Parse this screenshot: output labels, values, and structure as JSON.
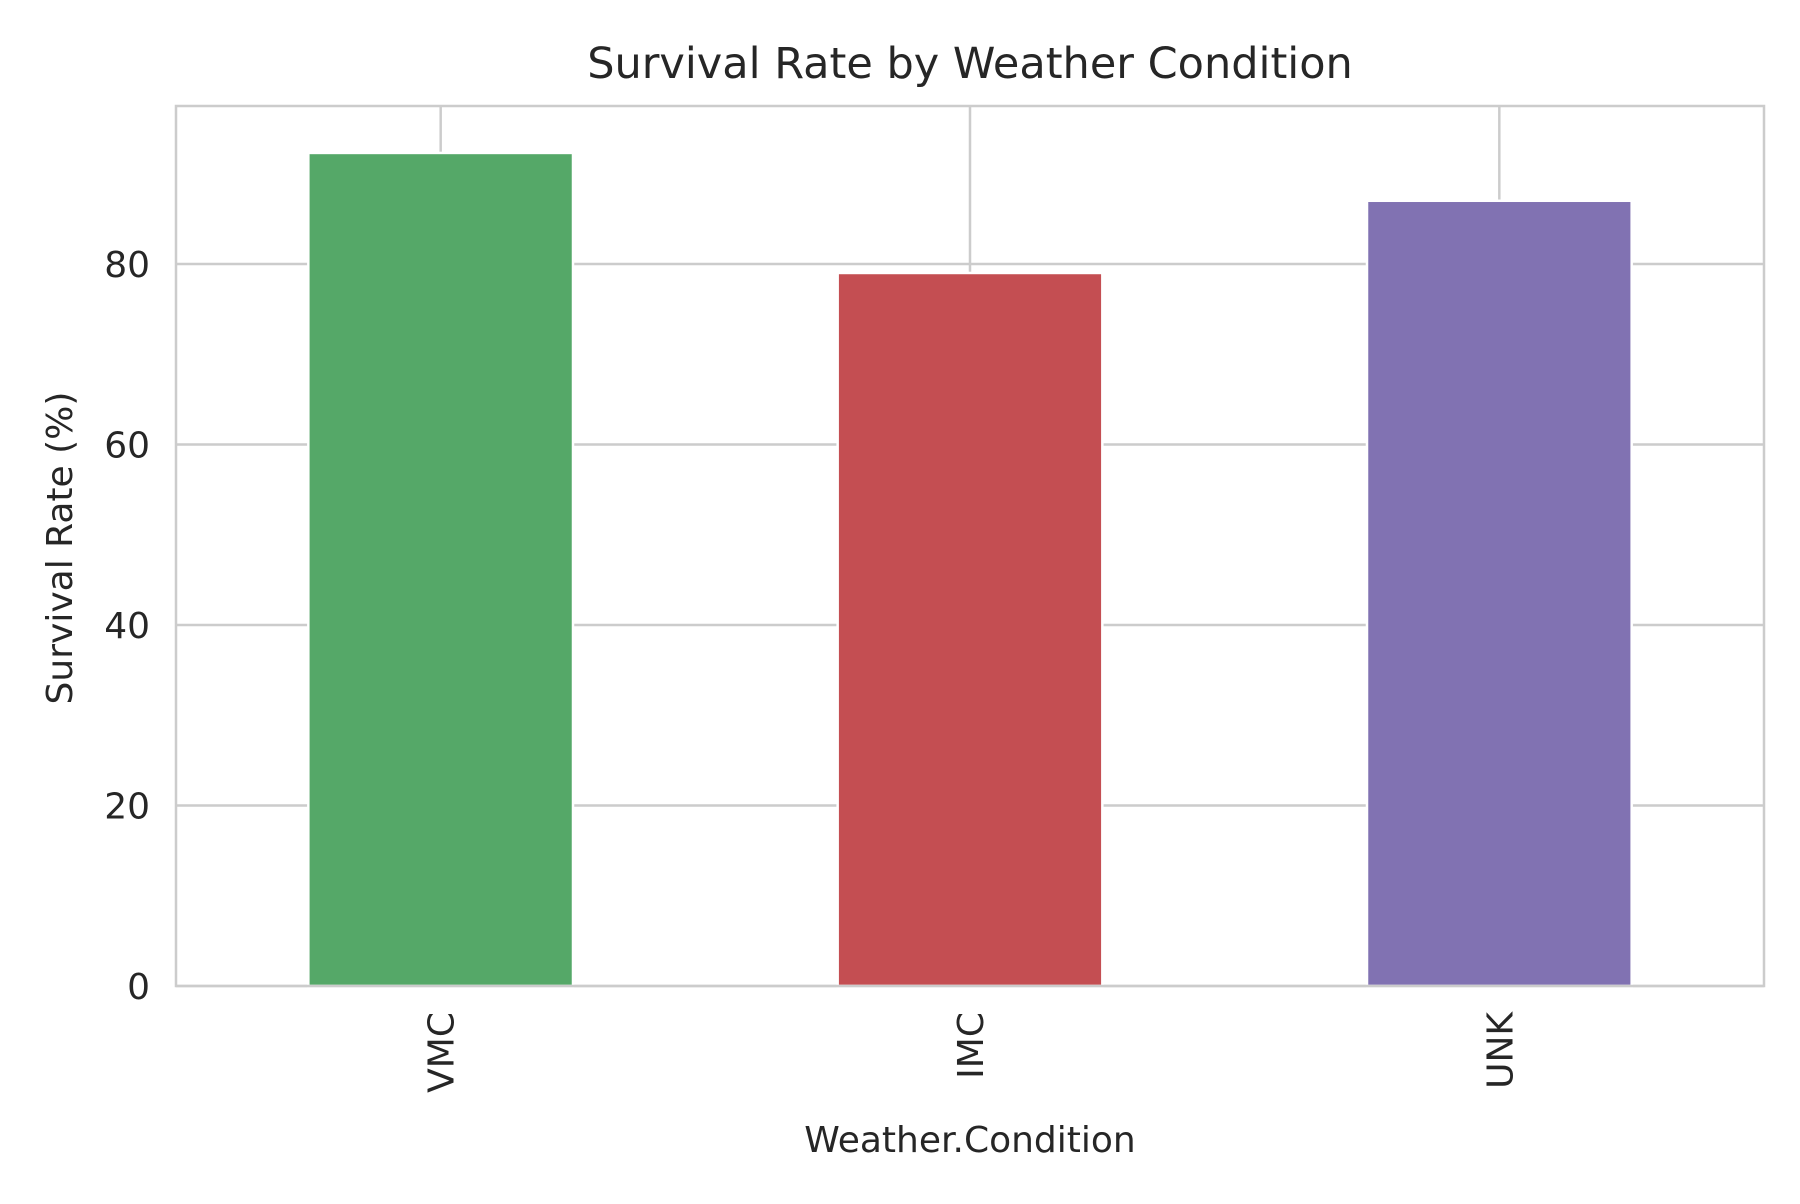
{
  "chart_data": {
    "type": "bar",
    "title": "Survival Rate by Weather Condition",
    "xlabel": "Weather.Condition",
    "ylabel": "Survival Rate (%)",
    "categories": [
      "VMC",
      "IMC",
      "UNK"
    ],
    "values": [
      92.3,
      79.0,
      87.0
    ],
    "colors": [
      "#55a868",
      "#c44e52",
      "#8172b2"
    ],
    "ylim": [
      0,
      97.5
    ],
    "yticks": [
      0,
      20,
      40,
      60,
      80
    ],
    "grid": true,
    "legend": "none"
  }
}
